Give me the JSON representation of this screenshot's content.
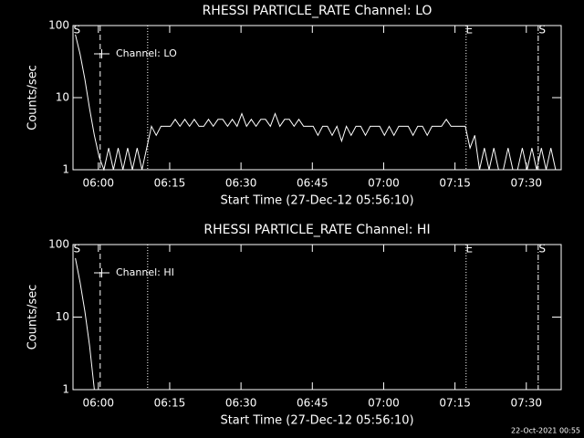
{
  "chart_data": [
    {
      "type": "line",
      "title": "RHESSI PARTICLE_RATE Channel: LO",
      "xlabel": "Start Time (27-Dec-12 05:56:10)",
      "ylabel": "Counts/sec",
      "x": [
        -60,
        0,
        60,
        120,
        180,
        240,
        300,
        360,
        420,
        480,
        540,
        600,
        660,
        720,
        780,
        840,
        900,
        960,
        1020,
        1080,
        1140,
        1200,
        1260,
        1320,
        1380,
        1440,
        1500,
        1560,
        1620,
        1680,
        1740,
        1800,
        1860,
        1920,
        1980,
        2040,
        2100,
        2160,
        2220,
        2280,
        2340,
        2400,
        2460,
        2520,
        2580,
        2640,
        2700,
        2760,
        2820,
        2880,
        2940,
        3000,
        3060,
        3120,
        3180,
        3240,
        3300,
        3360,
        3420,
        3480,
        3540,
        3600,
        3660,
        3720,
        3780,
        3840,
        3900,
        3960,
        4020,
        4080,
        4140,
        4200,
        4260,
        4320,
        4380,
        4440,
        4500,
        4560,
        4620,
        4680,
        4740,
        4800,
        4860,
        4920,
        4980,
        5040,
        5100,
        5160,
        5220,
        5280,
        5340,
        5400,
        5460,
        5520,
        5580,
        5640,
        5700,
        5760,
        5820,
        5880,
        5940,
        6000
      ],
      "series": [
        {
          "name": "Channel: LO",
          "color": "#ffffff",
          "values": [
            75,
            40,
            18,
            7,
            3,
            1.5,
            1,
            2,
            1,
            2,
            1,
            2,
            1,
            2,
            1,
            2,
            4,
            3,
            4,
            4,
            4,
            5,
            4,
            5,
            4,
            5,
            4,
            4,
            5,
            4,
            5,
            5,
            4,
            5,
            4,
            6,
            4,
            5,
            4,
            5,
            5,
            4,
            6,
            4,
            5,
            5,
            4,
            5,
            4,
            4,
            4,
            3,
            4,
            4,
            3,
            4,
            2.5,
            4,
            3,
            4,
            4,
            3,
            4,
            4,
            4,
            3,
            4,
            3,
            4,
            4,
            4,
            3,
            4,
            4,
            3,
            4,
            4,
            4,
            5,
            4,
            4,
            4,
            4,
            2,
            3,
            1,
            2,
            1,
            2,
            1,
            1,
            2,
            1,
            1,
            2,
            1,
            2,
            1,
            2,
            1,
            2,
            1
          ]
        }
      ],
      "xlim": [
        -90,
        6070
      ],
      "ylim": [
        1,
        100
      ],
      "ylog": true,
      "legend": "upper left",
      "xticks": [
        {
          "value": 230,
          "label": "06:00"
        },
        {
          "value": 1130,
          "label": "06:15"
        },
        {
          "value": 2030,
          "label": "06:30"
        },
        {
          "value": 2930,
          "label": "06:45"
        },
        {
          "value": 3830,
          "label": "07:00"
        },
        {
          "value": 4730,
          "label": "07:15"
        },
        {
          "value": 5630,
          "label": "07:30"
        }
      ],
      "yticks": [
        1,
        10,
        100
      ],
      "markers": [
        {
          "x": 253,
          "style": "dashed"
        },
        {
          "x": 852,
          "style": "dotted"
        },
        {
          "x": 4870,
          "style": "dotted"
        },
        {
          "x": 5780,
          "style": "dashdot"
        }
      ],
      "flags": [
        {
          "x": -40,
          "label": "S"
        },
        {
          "x": 4910,
          "label": "E"
        },
        {
          "x": 5830,
          "label": "S"
        }
      ]
    },
    {
      "type": "line",
      "title": "RHESSI PARTICLE_RATE Channel: HI",
      "xlabel": "Start Time (27-Dec-12 05:56:10)",
      "ylabel": "Counts/sec",
      "x": [
        -60,
        0,
        60,
        120,
        180
      ],
      "series": [
        {
          "name": "Channel: HI",
          "color": "#ffffff",
          "values": [
            65,
            30,
            12,
            4,
            1
          ]
        }
      ],
      "xlim": [
        -90,
        6070
      ],
      "ylim": [
        1,
        100
      ],
      "ylog": true,
      "legend": "upper left",
      "xticks": [
        {
          "value": 230,
          "label": "06:00"
        },
        {
          "value": 1130,
          "label": "06:15"
        },
        {
          "value": 2030,
          "label": "06:30"
        },
        {
          "value": 2930,
          "label": "06:45"
        },
        {
          "value": 3830,
          "label": "07:00"
        },
        {
          "value": 4730,
          "label": "07:15"
        },
        {
          "value": 5630,
          "label": "07:30"
        }
      ],
      "yticks": [
        1,
        10,
        100
      ],
      "markers": [
        {
          "x": 253,
          "style": "dashed"
        },
        {
          "x": 852,
          "style": "dotted"
        },
        {
          "x": 4870,
          "style": "dotted"
        },
        {
          "x": 5780,
          "style": "dashdot"
        }
      ],
      "flags": [
        {
          "x": -40,
          "label": "S"
        },
        {
          "x": 4910,
          "label": "E"
        },
        {
          "x": 5830,
          "label": "S"
        }
      ]
    }
  ],
  "footer": "22-Oct-2021 00:55"
}
